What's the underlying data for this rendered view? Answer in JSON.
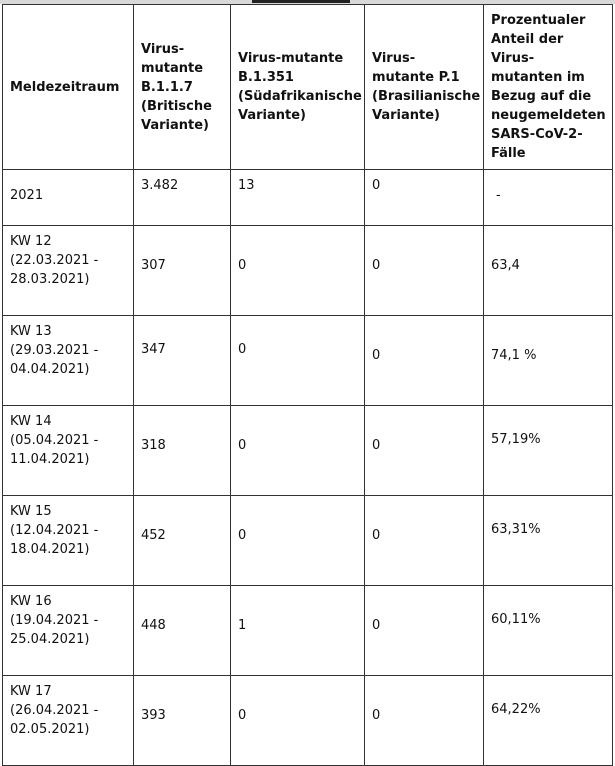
{
  "table": {
    "headers": [
      "Meldezeitraum",
      "Virus-mutante B.1.1.7 (Britische Variante)",
      "Virus-mutante B.1.351 (Südafrikanische Variante)",
      "Virus-mutante P.1 (Brasilianische Variante)",
      "Prozentualer Anteil der Virus-mutanten im Bezug auf die neugemeldeten SARS-CoV-2-Fälle"
    ],
    "rows": [
      {
        "period": "2021",
        "b117": "3.482",
        "b1351": "13",
        "p1": "0",
        "share": "-"
      },
      {
        "period": "KW 12 (22.03.2021 - 28.03.2021)",
        "b117": "307",
        "b1351": "0",
        "p1": "0",
        "share": "63,4"
      },
      {
        "period": "KW 13 (29.03.2021 - 04.04.2021)",
        "b117": "347",
        "b1351": "0",
        "p1": "0",
        "share": "74,1 %"
      },
      {
        "period": "KW 14 (05.04.2021 - 11.04.2021)",
        "b117": "318",
        "b1351": "0",
        "p1": "0",
        "share": "57,19%"
      },
      {
        "period": "KW 15 (12.04.2021 - 18.04.2021)",
        "b117": "452",
        "b1351": "0",
        "p1": "0",
        "share": "63,31%"
      },
      {
        "period": "KW 16 (19.04.2021 - 25.04.2021)",
        "b117": "448",
        "b1351": "1",
        "p1": "0",
        "share": "60,11%"
      },
      {
        "period": "KW 17 (26.04.2021 - 02.05.2021)",
        "b117": "393",
        "b1351": "0",
        "p1": "0",
        "share": "64,22%"
      }
    ]
  }
}
